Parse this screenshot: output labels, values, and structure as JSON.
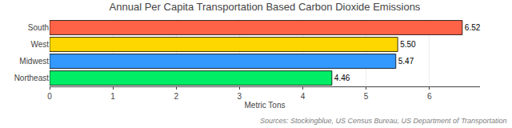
{
  "chart_data": {
    "type": "bar",
    "orientation": "horizontal",
    "title": "Annual Per Capita Transportation Based Carbon Dioxide Emissions",
    "categories": [
      "South",
      "West",
      "Midwest",
      "Northeast"
    ],
    "values": [
      6.52,
      5.5,
      5.47,
      4.46
    ],
    "value_labels": [
      "6.52",
      "5.50",
      "5.47",
      "4.46"
    ],
    "colors": [
      "#FF6347",
      "#FFD700",
      "#3399FF",
      "#00EE66"
    ],
    "xlabel": "Metric Tons",
    "xlim": [
      0,
      6.8
    ],
    "xticks": [
      0,
      1,
      2,
      3,
      4,
      5,
      6
    ],
    "grid": true,
    "data_labels": true,
    "annotations": [
      "Sources: Stockingblue, US Census Bureau, US Department of Transportation"
    ]
  }
}
